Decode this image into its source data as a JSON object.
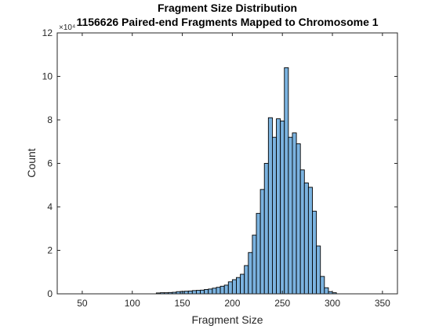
{
  "chart_data": {
    "type": "bar",
    "title": "Fragment Size Distribution",
    "subtitle": "1156626 Paired-end Fragments Mapped to Chromosome 1",
    "xlabel": "Fragment Size",
    "ylabel": "Count",
    "xlim": [
      25,
      365
    ],
    "ylim": [
      0,
      12
    ],
    "y_exponent_label": "×10⁴",
    "xticks": [
      50,
      100,
      150,
      200,
      250,
      300,
      350
    ],
    "yticks": [
      0,
      2,
      4,
      6,
      8,
      10,
      12
    ],
    "bin_width": 4,
    "bar_color": "#7bb3e0",
    "edge_color": "#000000",
    "grid": false,
    "legend": "none",
    "bins": [
      {
        "x": 126,
        "y": 0.04
      },
      {
        "x": 130,
        "y": 0.05
      },
      {
        "x": 134,
        "y": 0.05
      },
      {
        "x": 138,
        "y": 0.06
      },
      {
        "x": 142,
        "y": 0.07
      },
      {
        "x": 146,
        "y": 0.1
      },
      {
        "x": 150,
        "y": 0.11
      },
      {
        "x": 154,
        "y": 0.12
      },
      {
        "x": 158,
        "y": 0.13
      },
      {
        "x": 162,
        "y": 0.15
      },
      {
        "x": 166,
        "y": 0.16
      },
      {
        "x": 170,
        "y": 0.17
      },
      {
        "x": 174,
        "y": 0.2
      },
      {
        "x": 178,
        "y": 0.22
      },
      {
        "x": 182,
        "y": 0.26
      },
      {
        "x": 186,
        "y": 0.3
      },
      {
        "x": 190,
        "y": 0.35
      },
      {
        "x": 194,
        "y": 0.4
      },
      {
        "x": 198,
        "y": 0.55
      },
      {
        "x": 202,
        "y": 0.65
      },
      {
        "x": 206,
        "y": 0.75
      },
      {
        "x": 210,
        "y": 0.9
      },
      {
        "x": 214,
        "y": 1.3
      },
      {
        "x": 218,
        "y": 1.9
      },
      {
        "x": 222,
        "y": 2.7
      },
      {
        "x": 226,
        "y": 3.7
      },
      {
        "x": 230,
        "y": 4.8
      },
      {
        "x": 234,
        "y": 6.0
      },
      {
        "x": 238,
        "y": 8.1
      },
      {
        "x": 242,
        "y": 7.2
      },
      {
        "x": 246,
        "y": 8.05
      },
      {
        "x": 250,
        "y": 7.95
      },
      {
        "x": 254,
        "y": 10.4
      },
      {
        "x": 258,
        "y": 7.2
      },
      {
        "x": 262,
        "y": 7.4
      },
      {
        "x": 266,
        "y": 6.9
      },
      {
        "x": 270,
        "y": 5.7
      },
      {
        "x": 274,
        "y": 5.1
      },
      {
        "x": 278,
        "y": 4.9
      },
      {
        "x": 282,
        "y": 3.8
      },
      {
        "x": 286,
        "y": 2.2
      },
      {
        "x": 290,
        "y": 0.8
      },
      {
        "x": 294,
        "y": 0.28
      },
      {
        "x": 298,
        "y": 0.1
      },
      {
        "x": 302,
        "y": 0.05
      }
    ]
  }
}
